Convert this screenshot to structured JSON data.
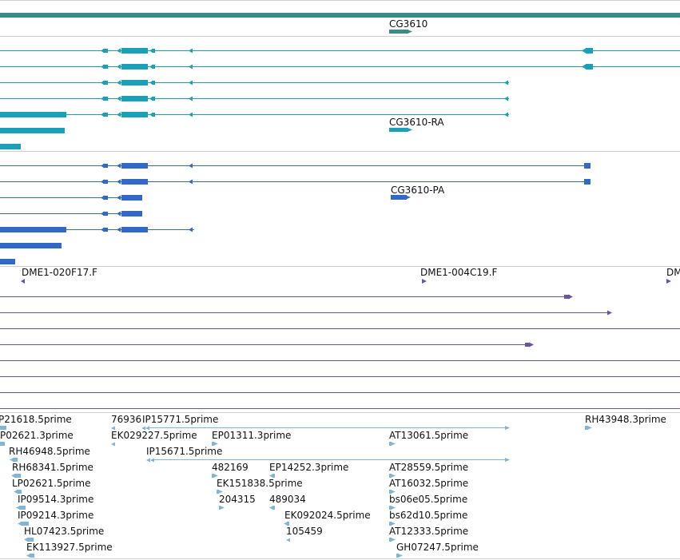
{
  "colors": {
    "gene": "#3b8b86",
    "mrna": "#1aa0b8",
    "cds": "#3268c6",
    "clone": "#6a52a5",
    "est": "#7fb6d8",
    "divider": "#cfcfcf"
  },
  "gene_label": "CG3610",
  "mrna_label": "CG3610-RA",
  "cds_label": "CG3610-PA",
  "clone_labels": [
    "DME1-020F17.F",
    "DME1-004C19.F",
    "DME"
  ],
  "est_labels": [
    "P21618.5prime",
    "76936",
    "IP15771.5prime",
    "RH43948.3prime",
    "P02621.3prime",
    "EK029227.5prime",
    "EP01311.3prime",
    "AT13061.5prime",
    "RH46948.5prime",
    "IP15671.5prime",
    "RH68341.5prime",
    "482169",
    "EP14252.3prime",
    "AT28559.5prime",
    "LP02621.5prime",
    "EK151838.5prime",
    "AT16032.5prime",
    "IP09514.3prime",
    "204315",
    "489034",
    "bs06e05.5prime",
    "IP09214.3prime",
    "EK092024.5prime",
    "bs62d10.5prime",
    "HL07423.5prime",
    "105459",
    "AT12333.5prime",
    "EK113927.5prime",
    "GH07247.5prime"
  ]
}
